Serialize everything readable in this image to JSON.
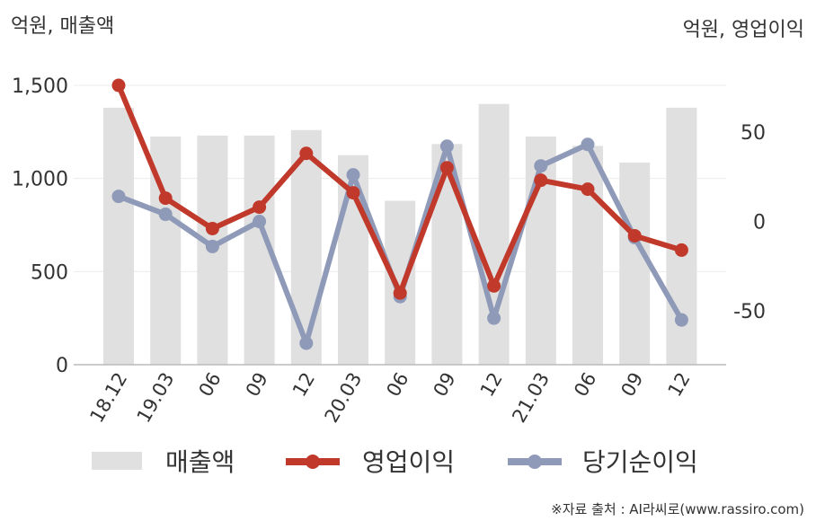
{
  "chart_data": {
    "type": "bar+line",
    "categories": [
      "18.12",
      "19.03",
      "06",
      "09",
      "12",
      "20.03",
      "06",
      "09",
      "12",
      "21.03",
      "06",
      "09",
      "12"
    ],
    "left_axis": {
      "unit_label": "억원, 매출액",
      "ylim": [
        0,
        1500
      ],
      "ticks": [
        "0",
        "500",
        "1,000",
        "1,500"
      ],
      "tick_values": [
        0,
        500,
        1000,
        1500
      ]
    },
    "right_axis": {
      "unit_label": "억원, 영업이익",
      "ylim": [
        -80,
        76
      ],
      "ticks": [
        "-50",
        "0",
        "50"
      ],
      "tick_values": [
        -50,
        0,
        50
      ]
    },
    "series": [
      {
        "name": "매출액",
        "kind": "bar",
        "axis": "left",
        "color": "#e0e0e0",
        "values": [
          1380,
          1225,
          1230,
          1230,
          1260,
          1125,
          880,
          1185,
          1400,
          1225,
          1175,
          1085,
          1380
        ]
      },
      {
        "name": "영업이익",
        "kind": "line",
        "axis": "right",
        "color": "#c0392b",
        "values": [
          76,
          13,
          -4,
          8,
          38,
          16,
          -40,
          30,
          -36,
          23,
          18,
          -8,
          -16
        ]
      },
      {
        "name": "당기순이익",
        "kind": "line",
        "axis": "right",
        "color": "#8e9ab8",
        "values": [
          14,
          4,
          -14,
          0,
          -68,
          26,
          -42,
          42,
          -54,
          31,
          43,
          -9,
          -55
        ]
      }
    ],
    "grid": true,
    "legend_position": "bottom",
    "source_note": "※자료 출처 : AI라씨로(www.rassiro.com)"
  }
}
